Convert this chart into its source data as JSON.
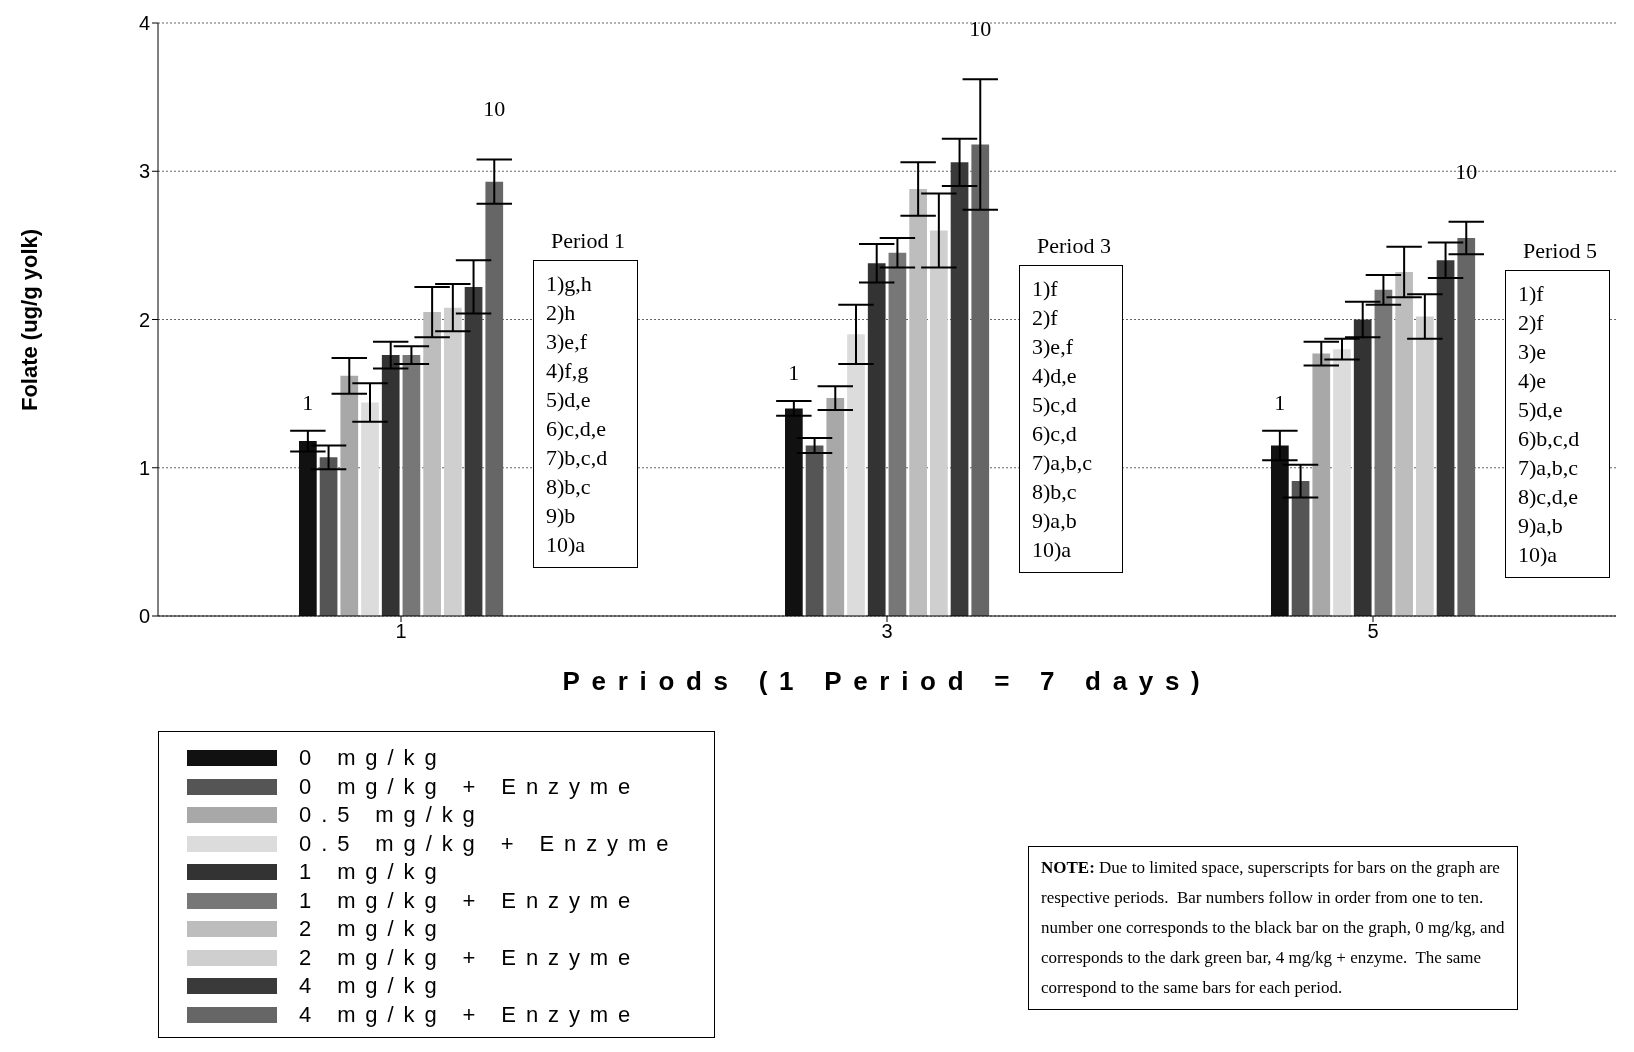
{
  "chart_data": {
    "type": "bar",
    "xlabel": "Periods (1 Period = 7 days)",
    "ylabel": "Folate (ug/g yolk)",
    "categories": [
      "1",
      "3",
      "5"
    ],
    "series": [
      {
        "name": "0 mg/kg",
        "color": "#111111",
        "values": [
          1.18,
          1.4,
          1.15
        ],
        "errors": [
          0.07,
          0.05,
          0.1
        ]
      },
      {
        "name": "0 mg/kg + Enzyme",
        "color": "#555555",
        "values": [
          1.07,
          1.15,
          0.91
        ],
        "errors": [
          0.08,
          0.05,
          0.11
        ]
      },
      {
        "name": "0.5 mg/kg",
        "color": "#a8a8a8",
        "values": [
          1.62,
          1.47,
          1.77
        ],
        "errors": [
          0.12,
          0.08,
          0.08
        ]
      },
      {
        "name": "0.5 mg/kg + Enzyme",
        "color": "#dcdcdc",
        "values": [
          1.44,
          1.9,
          1.8
        ],
        "errors": [
          0.13,
          0.2,
          0.07
        ]
      },
      {
        "name": "1 mg/kg",
        "color": "#333333",
        "values": [
          1.76,
          2.38,
          2.0
        ],
        "errors": [
          0.09,
          0.13,
          0.12
        ]
      },
      {
        "name": "1 mg/kg + Enzyme",
        "color": "#777777",
        "values": [
          1.76,
          2.45,
          2.2
        ],
        "errors": [
          0.06,
          0.1,
          0.1
        ]
      },
      {
        "name": "2 mg/kg",
        "color": "#bdbdbd",
        "values": [
          2.05,
          2.88,
          2.32
        ],
        "errors": [
          0.17,
          0.18,
          0.17
        ]
      },
      {
        "name": "2 mg/kg + Enzyme",
        "color": "#cfcfcf",
        "values": [
          2.08,
          2.6,
          2.02
        ],
        "errors": [
          0.16,
          0.25,
          0.15
        ]
      },
      {
        "name": "4 mg/kg",
        "color": "#3a3a3a",
        "values": [
          2.22,
          3.06,
          2.4
        ],
        "errors": [
          0.18,
          0.16,
          0.12
        ]
      },
      {
        "name": "4 mg/kg + Enzyme",
        "color": "#666666",
        "values": [
          2.93,
          3.18,
          2.55
        ],
        "errors": [
          0.15,
          0.44,
          0.11
        ]
      }
    ],
    "ylim": [
      0,
      4
    ],
    "yticks": [
      0,
      1,
      2,
      3,
      4
    ],
    "grid": "y",
    "legend": "bottom left",
    "annotations": [
      "1",
      "10",
      "1",
      "10",
      "1",
      "10",
      "Period 1\n1)g,h\n2)h\n3)e,f\n4)f,g\n5)d,e\n6)c,d,e\n7)b,c,d\n8)b,c\n9)b\n10)a",
      "Period 3\n1)f\n2)f\n3)e,f\n4)d,e\n5)c,d\n6)c,d\n7)a,b,c\n8)b,c\n9)a,b\n10)a",
      "Period 5\n1)f\n2)f\n3)e\n4)e\n5)d,e\n6)b,c,d\n7)a,b,c\n8)c,d,e\n9)a,b\n10)a",
      "NOTE: Due to limited space, superscripts for bars on the graph are\nrespective periods.  Bar numbers follow in order from one to ten.\nnumber one corresponds to the black bar on the graph, 0 mg/kg, and\ncorresponds to the dark green bar, 4 mg/kg + enzyme.  The same\ncorrespond to the same bars for each period."
    ]
  }
}
